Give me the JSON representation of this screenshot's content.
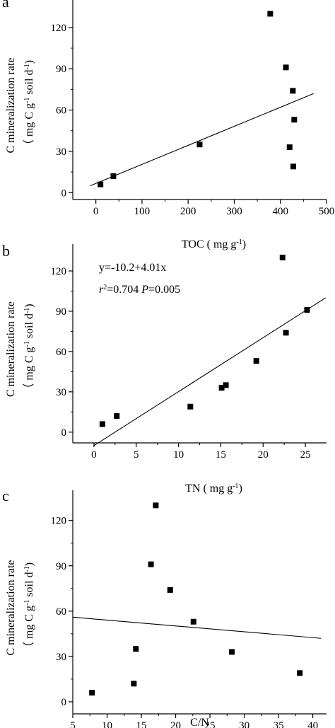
{
  "chart_data": [
    {
      "type": "scatter",
      "panel_label": "a",
      "ylabel_line1": "C mineralization rate",
      "ylabel_line2": [
        "（ mg C g",
        "-1",
        " soil d",
        "-1",
        ")"
      ],
      "xlabel": [
        "TOC ( mg g",
        "-1",
        ")"
      ],
      "xlim": [
        -50,
        500
      ],
      "ylim": [
        -5,
        140
      ],
      "xticks": [
        0,
        100,
        200,
        300,
        400,
        500
      ],
      "yticks": [
        0,
        30,
        60,
        90,
        120
      ],
      "points": [
        {
          "x": 10,
          "y": 6
        },
        {
          "x": 38,
          "y": 12
        },
        {
          "x": 225,
          "y": 35
        },
        {
          "x": 378,
          "y": 130
        },
        {
          "x": 412,
          "y": 91
        },
        {
          "x": 427,
          "y": 74
        },
        {
          "x": 430,
          "y": 53
        },
        {
          "x": 420,
          "y": 33
        },
        {
          "x": 428,
          "y": 19
        }
      ],
      "fit_line": {
        "x": [
          -12,
          472
        ],
        "y": [
          5,
          72
        ]
      },
      "annotations": []
    },
    {
      "type": "scatter",
      "panel_label": "b",
      "ylabel_line1": "C mineralization rate",
      "ylabel_line2": [
        "（ mg C g",
        "-1",
        " soil d",
        "-1",
        ")"
      ],
      "xlabel": [
        "TN ( mg g",
        "-1",
        ")"
      ],
      "xlim": [
        -2.5,
        27.5
      ],
      "ylim": [
        -8,
        140
      ],
      "xticks": [
        0,
        5,
        10,
        15,
        20,
        25
      ],
      "yticks": [
        0,
        30,
        60,
        90,
        120
      ],
      "points": [
        {
          "x": 1.0,
          "y": 6
        },
        {
          "x": 2.7,
          "y": 12
        },
        {
          "x": 11.4,
          "y": 19
        },
        {
          "x": 15.1,
          "y": 33
        },
        {
          "x": 15.6,
          "y": 35
        },
        {
          "x": 19.2,
          "y": 53
        },
        {
          "x": 22.7,
          "y": 74
        },
        {
          "x": 25.2,
          "y": 91
        },
        {
          "x": 22.3,
          "y": 130
        }
      ],
      "fit_line": {
        "x": [
          0,
          27.4
        ],
        "y": [
          -10,
          100
        ]
      },
      "annotations": [
        {
          "parts": [
            "y=-10.2+4.01x"
          ]
        },
        {
          "parts": [
            "r",
            "2",
            "=0.704  ",
            "P",
            "=0.005"
          ]
        }
      ]
    },
    {
      "type": "scatter",
      "panel_label": "c",
      "ylabel_line1": "C mineralization rate",
      "ylabel_line2": [
        "（ mg C g",
        "-1",
        " soil d",
        "-1",
        ")"
      ],
      "xlabel": [
        "C/N"
      ],
      "xlim": [
        5,
        42
      ],
      "ylim": [
        -8,
        140
      ],
      "xticks": [
        5,
        10,
        15,
        20,
        25,
        30,
        35,
        40
      ],
      "yticks": [
        0,
        30,
        60,
        90,
        120
      ],
      "points": [
        {
          "x": 7.8,
          "y": 6
        },
        {
          "x": 13.9,
          "y": 12
        },
        {
          "x": 14.2,
          "y": 35
        },
        {
          "x": 16.4,
          "y": 91
        },
        {
          "x": 17.1,
          "y": 130
        },
        {
          "x": 19.2,
          "y": 74
        },
        {
          "x": 22.6,
          "y": 53
        },
        {
          "x": 28.2,
          "y": 33
        },
        {
          "x": 38.1,
          "y": 19
        }
      ],
      "fit_line": {
        "x": [
          5,
          41.2
        ],
        "y": [
          56,
          42
        ]
      },
      "annotations": []
    }
  ]
}
